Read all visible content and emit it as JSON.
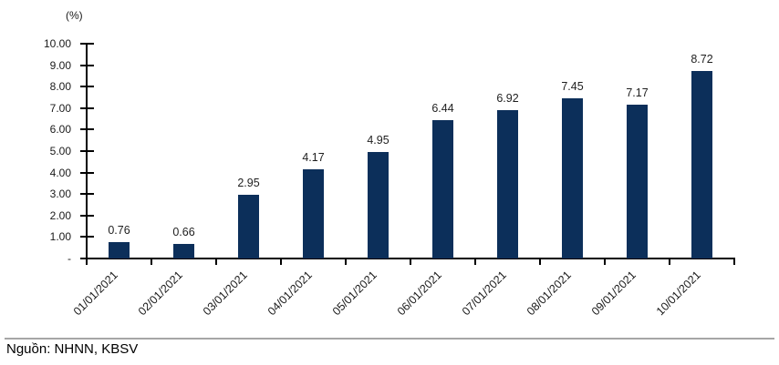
{
  "chart_data": {
    "type": "bar",
    "title": "",
    "categories": [
      "01/01/2021",
      "02/01/2021",
      "03/01/2021",
      "04/01/2021",
      "05/01/2021",
      "06/01/2021",
      "07/01/2021",
      "08/01/2021",
      "09/01/2021",
      "10/01/2021"
    ],
    "values": [
      0.76,
      0.66,
      2.95,
      4.17,
      4.95,
      6.44,
      6.92,
      7.45,
      7.17,
      8.72
    ],
    "data_labels": [
      "0.76",
      "0.66",
      "2.95",
      "4.17",
      "4.95",
      "6.44",
      "6.92",
      "7.45",
      "7.17",
      "8.72"
    ],
    "xlabel": "",
    "ylabel": "(%)",
    "ylim": [
      0,
      10
    ],
    "ytick_step": 1,
    "ytick_labels": [
      "-",
      "1.00",
      "2.00",
      "3.00",
      "4.00",
      "5.00",
      "6.00",
      "7.00",
      "8.00",
      "9.00",
      "10.00"
    ],
    "grid": false,
    "legend": "none",
    "bar_color": "#0c2f5a"
  },
  "footer": {
    "source": "Nguồn: NHNN, KBSV"
  },
  "colors": {
    "bar": "#0c2f5a",
    "axis": "#000000",
    "text": "#1a1a1a",
    "separator": "#a6a6a6",
    "background": "#ffffff"
  }
}
